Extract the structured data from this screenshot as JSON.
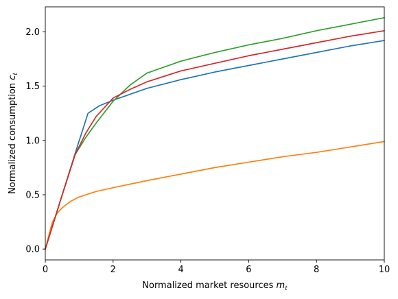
{
  "chart_data": {
    "type": "line",
    "title": "",
    "xlabel": "Normalized market resources",
    "xlabel_var": "m",
    "xlabel_sub": "t",
    "ylabel": "Normalized consumption",
    "ylabel_var": "c",
    "ylabel_sub": "t",
    "xlim": [
      0,
      10
    ],
    "ylim": [
      -0.1,
      2.23
    ],
    "xticks": [
      0,
      2,
      4,
      6,
      8,
      10
    ],
    "xtick_labels": [
      "0",
      "2",
      "4",
      "6",
      "8",
      "10"
    ],
    "yticks": [
      0.0,
      0.5,
      1.0,
      1.5,
      2.0
    ],
    "ytick_labels": [
      "0.0",
      "0.5",
      "1.0",
      "1.5",
      "2.0"
    ],
    "grid": false,
    "legend": "none",
    "series": [
      {
        "color": "#1f77b4",
        "x": [
          0,
          0.5,
          0.88,
          1.26,
          1.6,
          2.0,
          3.0,
          4.0,
          5.0,
          6.0,
          7.0,
          8.0,
          9.0,
          10.0
        ],
        "y": [
          0,
          0.5,
          0.88,
          1.25,
          1.32,
          1.37,
          1.48,
          1.56,
          1.63,
          1.69,
          1.75,
          1.81,
          1.87,
          1.92
        ]
      },
      {
        "color": "#ff7f0e",
        "x": [
          0,
          0.1,
          0.2,
          0.35,
          0.5,
          0.75,
          1.0,
          1.5,
          2.0,
          3.0,
          4.0,
          5.0,
          6.0,
          7.0,
          8.0,
          9.0,
          10.0
        ],
        "y": [
          0,
          0.12,
          0.24,
          0.33,
          0.38,
          0.44,
          0.48,
          0.53,
          0.565,
          0.63,
          0.69,
          0.75,
          0.8,
          0.85,
          0.89,
          0.94,
          0.99
        ]
      },
      {
        "color": "#2ca02c",
        "x": [
          0,
          0.5,
          0.88,
          1.2,
          1.5,
          2.0,
          2.5,
          3.0,
          4.0,
          5.0,
          6.0,
          7.0,
          8.0,
          9.0,
          10.0
        ],
        "y": [
          0,
          0.5,
          0.87,
          1.03,
          1.16,
          1.36,
          1.51,
          1.62,
          1.73,
          1.81,
          1.88,
          1.94,
          2.01,
          2.07,
          2.13
        ]
      },
      {
        "color": "#d62728",
        "x": [
          0,
          0.5,
          0.88,
          1.2,
          1.5,
          2.0,
          2.5,
          3.0,
          4.0,
          5.0,
          6.0,
          7.0,
          8.0,
          9.0,
          10.0
        ],
        "y": [
          0,
          0.5,
          0.87,
          1.07,
          1.22,
          1.39,
          1.47,
          1.54,
          1.64,
          1.71,
          1.78,
          1.84,
          1.9,
          1.96,
          2.01
        ]
      }
    ]
  }
}
